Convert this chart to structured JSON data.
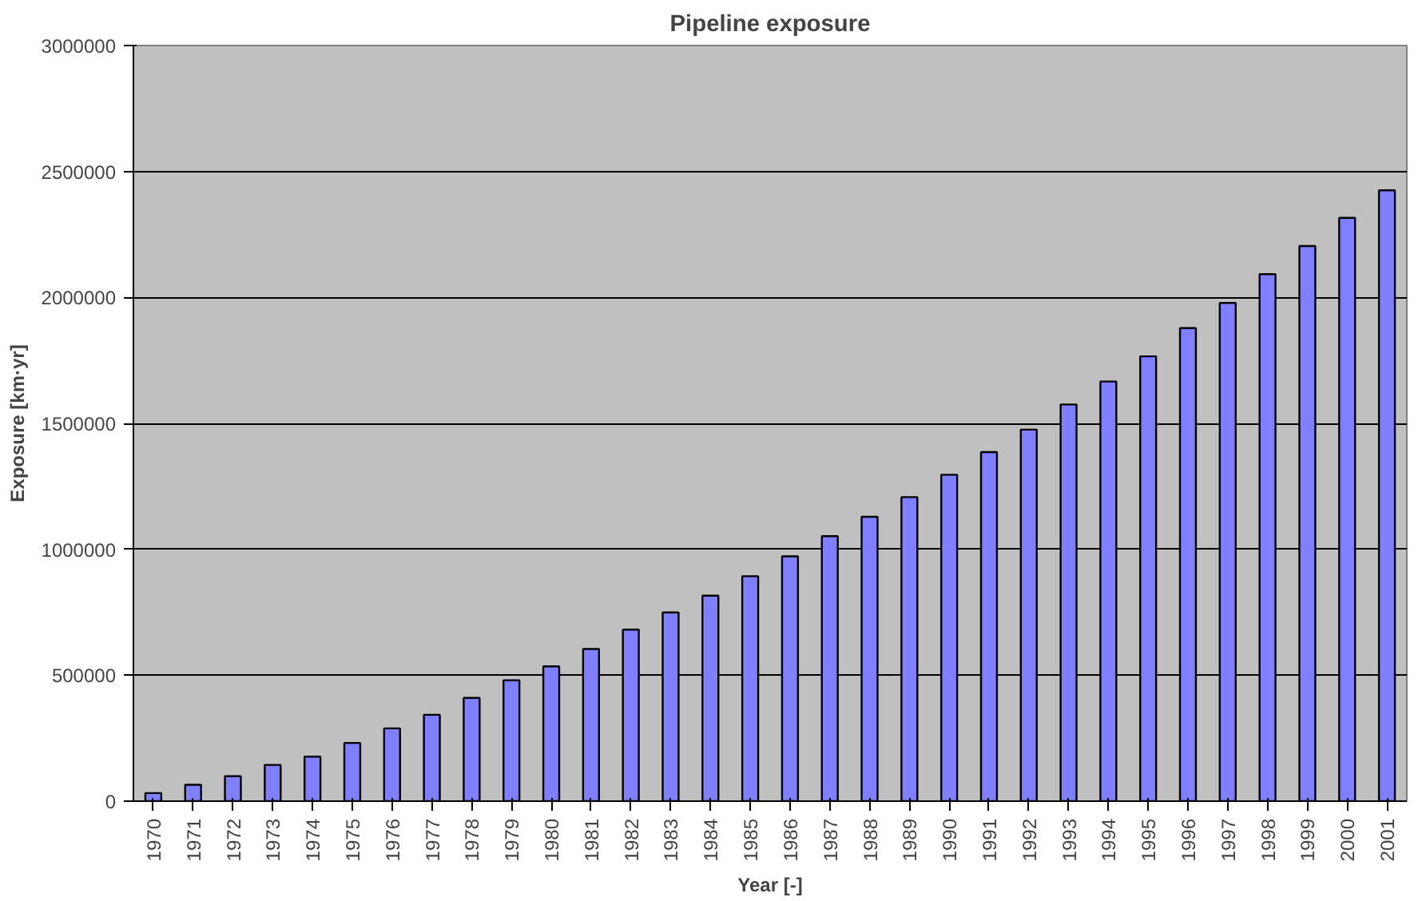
{
  "chart_data": {
    "type": "bar",
    "title": "Pipeline exposure",
    "xlabel": "Year [-]",
    "ylabel": "Exposure [km·yr]",
    "categories": [
      "1970",
      "1971",
      "1972",
      "1973",
      "1974",
      "1975",
      "1976",
      "1977",
      "1978",
      "1979",
      "1980",
      "1981",
      "1982",
      "1983",
      "1984",
      "1985",
      "1986",
      "1987",
      "1988",
      "1989",
      "1990",
      "1991",
      "1992",
      "1993",
      "1994",
      "1995",
      "1996",
      "1997",
      "1998",
      "1999",
      "2000",
      "2001"
    ],
    "values": [
      32000,
      65000,
      99000,
      144000,
      177000,
      231000,
      289000,
      343000,
      410000,
      480000,
      535000,
      604000,
      681000,
      749000,
      816000,
      893000,
      972000,
      1052000,
      1129000,
      1207000,
      1296000,
      1386000,
      1475000,
      1575000,
      1666000,
      1766000,
      1878000,
      1978000,
      2092000,
      2204000,
      2316000,
      2425000
    ],
    "color": "#8080ff",
    "ylim": [
      0,
      3000000
    ],
    "yticks": [
      0,
      500000,
      1000000,
      1500000,
      2000000,
      2500000,
      3000000
    ],
    "grid": "y"
  }
}
